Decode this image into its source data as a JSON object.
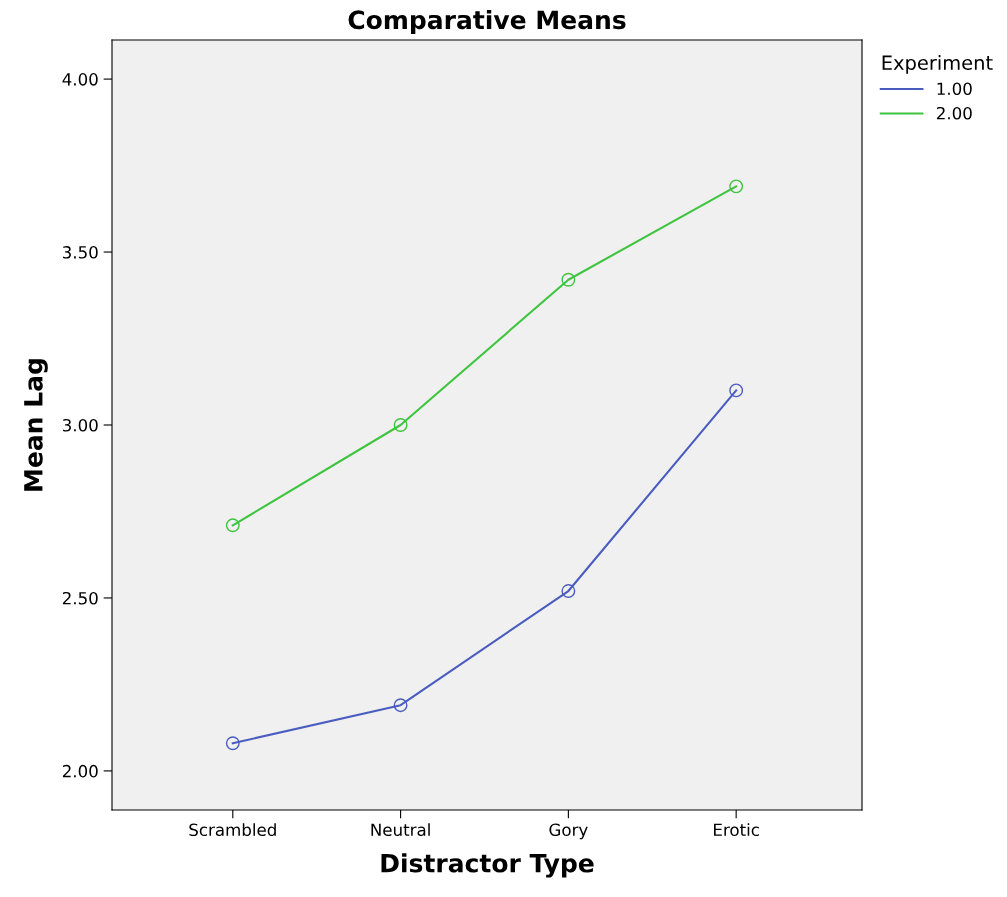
{
  "chart_data": {
    "type": "line",
    "title": "Comparative Means",
    "xlabel": "Distractor Type",
    "ylabel": "Mean Lag",
    "legend_title": "Experiment",
    "categories": [
      "Scrambled",
      "Neutral",
      "Gory",
      "Erotic"
    ],
    "series": [
      {
        "name": "1.00",
        "color": "#4a5cc0",
        "values": [
          2.08,
          2.19,
          2.52,
          3.1
        ]
      },
      {
        "name": "2.00",
        "color": "#3ec43e",
        "values": [
          2.71,
          3.0,
          3.42,
          3.69
        ]
      }
    ],
    "ylim": [
      1.887,
      4.113
    ],
    "yticks": [
      {
        "value": 2,
        "label": "2.00"
      },
      {
        "value": 2.5,
        "label": "2.50"
      },
      {
        "value": 3,
        "label": "3.00"
      },
      {
        "value": 3.5,
        "label": "3.50"
      },
      {
        "value": 4,
        "label": "4.00"
      }
    ],
    "grid": false,
    "legend": "top right",
    "marker": "circle",
    "line_style": "solid"
  }
}
